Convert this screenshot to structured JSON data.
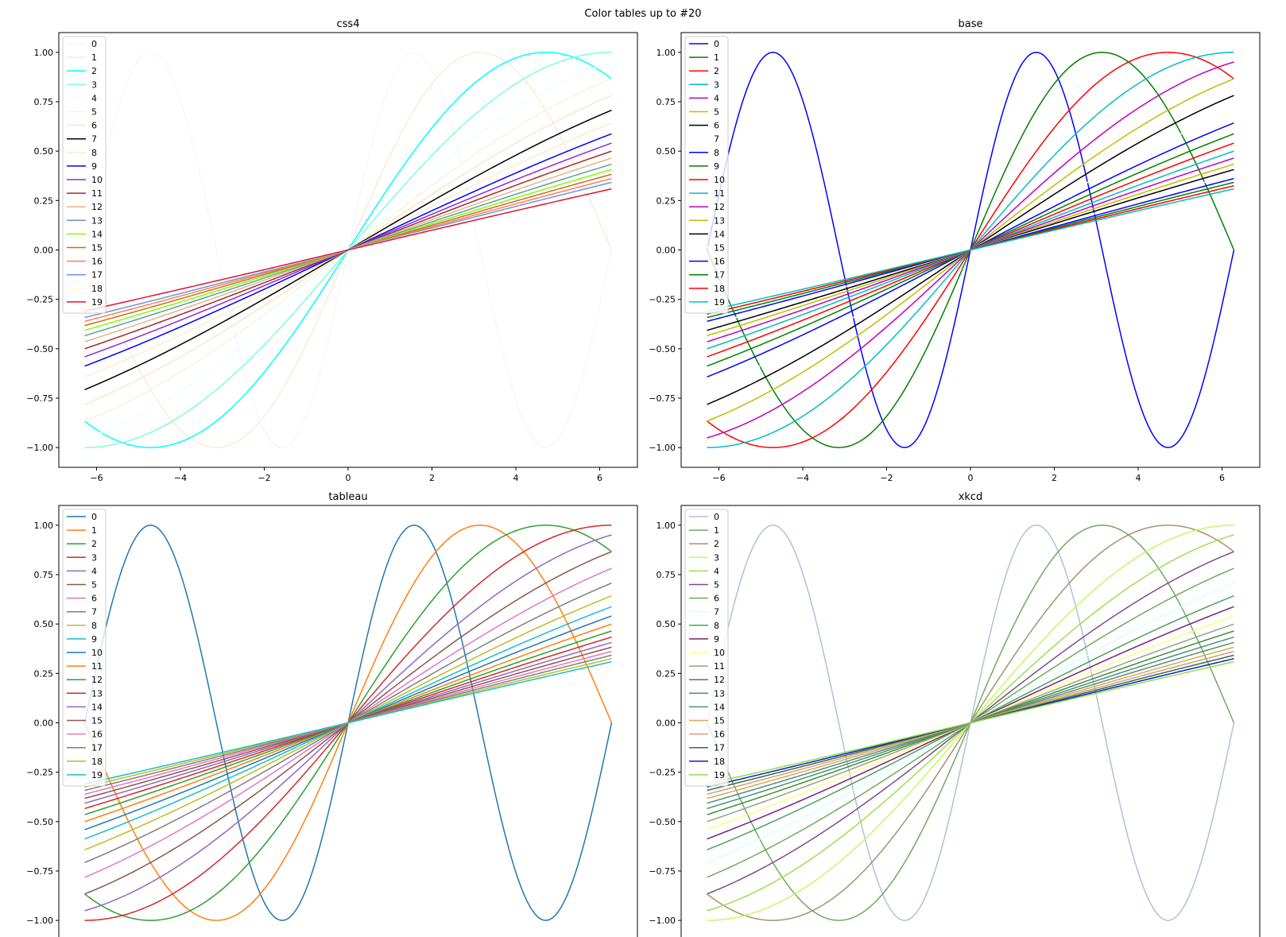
{
  "figure_title": "Color tables up to #20",
  "chart_data": [
    {
      "type": "line",
      "title": "css4",
      "xlim": [
        -6.9,
        6.9
      ],
      "ylim": [
        -1.1,
        1.1
      ],
      "x_ticks": [
        -6,
        -4,
        -2,
        0,
        2,
        4,
        6
      ],
      "y_ticks": [
        -1.0,
        -0.75,
        -0.5,
        -0.25,
        0.0,
        0.25,
        0.5,
        0.75,
        1.0
      ],
      "x_tick_labels": [
        "−6",
        "−4",
        "−2",
        "0",
        "2",
        "4",
        "6"
      ],
      "y_tick_labels": [
        "−1.00",
        "−0.75",
        "−0.50",
        "−0.25",
        "0.00",
        "0.25",
        "0.50",
        "0.75",
        "1.00"
      ],
      "x_range": [
        -6.2832,
        6.2832
      ],
      "curve": "y = sin(x / (i + 1))",
      "legend": [
        "0",
        "1",
        "2",
        "3",
        "4",
        "5",
        "6",
        "7",
        "8",
        "9",
        "10",
        "11",
        "12",
        "13",
        "14",
        "15",
        "16",
        "17",
        "18",
        "19"
      ],
      "legend_position": "upper-left",
      "colors": [
        "#F0F8FF",
        "#FAEBD7",
        "#00FFFF",
        "#7FFFD4",
        "#F0FFFF",
        "#F5F5DC",
        "#FFE4C4",
        "#000000",
        "#FFEBCD",
        "#0000FF",
        "#8A2BE2",
        "#A52A2A",
        "#DEB887",
        "#5F9EA0",
        "#7FFF00",
        "#D2691E",
        "#FF7F50",
        "#6495ED",
        "#FFF8DC",
        "#DC143C"
      ]
    },
    {
      "type": "line",
      "title": "base",
      "xlim": [
        -6.9,
        6.9
      ],
      "ylim": [
        -1.1,
        1.1
      ],
      "x_ticks": [
        -6,
        -4,
        -2,
        0,
        2,
        4,
        6
      ],
      "y_ticks": [
        -1.0,
        -0.75,
        -0.5,
        -0.25,
        0.0,
        0.25,
        0.5,
        0.75,
        1.0
      ],
      "x_tick_labels": [
        "−6",
        "−4",
        "−2",
        "0",
        "2",
        "4",
        "6"
      ],
      "y_tick_labels": [
        "−1.00",
        "−0.75",
        "−0.50",
        "−0.25",
        "0.00",
        "0.25",
        "0.50",
        "0.75",
        "1.00"
      ],
      "x_range": [
        -6.2832,
        6.2832
      ],
      "curve": "y = sin(x / (i + 1))",
      "legend": [
        "0",
        "1",
        "2",
        "3",
        "4",
        "5",
        "6",
        "7",
        "8",
        "9",
        "10",
        "11",
        "12",
        "13",
        "14",
        "15",
        "16",
        "17",
        "18",
        "19"
      ],
      "legend_position": "upper-left",
      "colors": [
        "#0000FF",
        "#008000",
        "#FF0000",
        "#00BFBF",
        "#BF00BF",
        "#BFBF00",
        "#000000",
        "#FFFFFF",
        "#0000FF",
        "#008000",
        "#FF0000",
        "#00BFBF",
        "#BF00BF",
        "#BFBF00",
        "#000000",
        "#FFFFFF",
        "#0000FF",
        "#008000",
        "#FF0000",
        "#00BFBF"
      ]
    },
    {
      "type": "line",
      "title": "tableau",
      "xlim": [
        -6.9,
        6.9
      ],
      "ylim": [
        -1.1,
        1.1
      ],
      "x_ticks": [
        -6,
        -4,
        -2,
        0,
        2,
        4,
        6
      ],
      "y_ticks": [
        -1.0,
        -0.75,
        -0.5,
        -0.25,
        0.0,
        0.25,
        0.5,
        0.75,
        1.0
      ],
      "x_tick_labels": [
        "",
        "",
        "",
        "",
        "",
        "",
        ""
      ],
      "y_tick_labels": [
        "−1.00",
        "−0.75",
        "−0.50",
        "−0.25",
        "0.00",
        "0.25",
        "0.50",
        "0.75",
        "1.00"
      ],
      "x_range": [
        -6.2832,
        6.2832
      ],
      "curve": "y = sin(x / (i + 1))",
      "legend": [
        "0",
        "1",
        "2",
        "3",
        "4",
        "5",
        "6",
        "7",
        "8",
        "9",
        "10",
        "11",
        "12",
        "13",
        "14",
        "15",
        "16",
        "17",
        "18",
        "19"
      ],
      "legend_position": "upper-left",
      "colors": [
        "#1F77B4",
        "#FF7F0E",
        "#2CA02C",
        "#D62728",
        "#9467BD",
        "#8C564B",
        "#E377C2",
        "#7F7F7F",
        "#BCBD22",
        "#17BECF",
        "#1F77B4",
        "#FF7F0E",
        "#2CA02C",
        "#D62728",
        "#9467BD",
        "#8C564B",
        "#E377C2",
        "#7F7F7F",
        "#BCBD22",
        "#17BECF"
      ]
    },
    {
      "type": "line",
      "title": "xkcd",
      "xlim": [
        -6.9,
        6.9
      ],
      "ylim": [
        -1.1,
        1.1
      ],
      "x_ticks": [
        -6,
        -4,
        -2,
        0,
        2,
        4,
        6
      ],
      "y_ticks": [
        -1.0,
        -0.75,
        -0.5,
        -0.25,
        0.0,
        0.25,
        0.5,
        0.75,
        1.0
      ],
      "x_tick_labels": [
        "",
        "",
        "",
        "",
        "",
        "",
        ""
      ],
      "y_tick_labels": [
        "−1.00",
        "−0.75",
        "−0.50",
        "−0.25",
        "0.00",
        "0.25",
        "0.50",
        "0.75",
        "1.00"
      ],
      "x_range": [
        -6.2832,
        6.2832
      ],
      "curve": "y = sin(x / (i + 1))",
      "legend": [
        "0",
        "1",
        "2",
        "3",
        "4",
        "5",
        "6",
        "7",
        "8",
        "9",
        "10",
        "11",
        "12",
        "13",
        "14",
        "15",
        "16",
        "17",
        "18",
        "19"
      ],
      "legend_position": "upper-left",
      "colors": [
        "#B0C0DA",
        "#6FAA5F",
        "#AA9070",
        "#C6F860",
        "#9BE050",
        "#7F4A8F",
        "#6FAA5F",
        "#D9FFFF",
        "#4F9F5F",
        "#7A1F7A",
        "#FBFF80",
        "#9AA08A",
        "#3F8F2F",
        "#4F8F7F",
        "#4F8F7F",
        "#DCA850",
        "#D49A80",
        "#2F6F3F",
        "#0F1FCF",
        "#8FE040"
      ]
    }
  ]
}
